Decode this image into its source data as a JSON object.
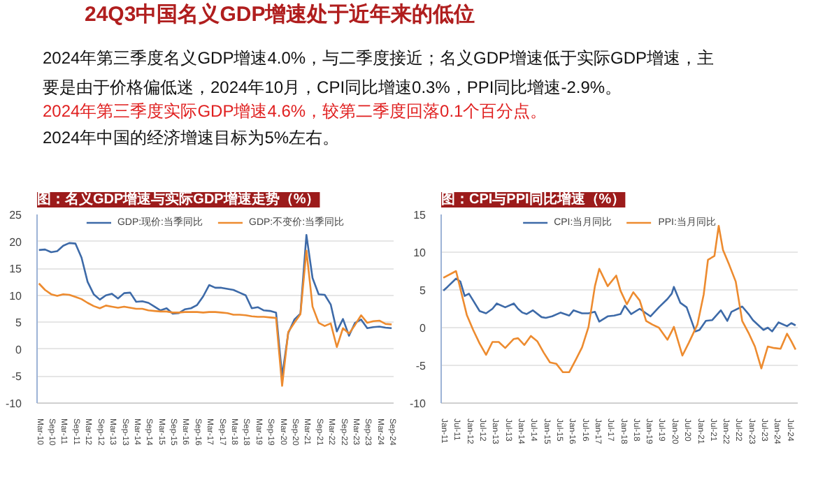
{
  "chart_data": [
    {
      "type": "other",
      "title": "24Q3中国名义GDP增速处于近年来的低位",
      "annotations": [
        "2024年第三季度名义GDP增速4.0%，与二季度接近；名义GDP增速低于实际GDP增速，主要是由于价格偏低迷，2024年10月，CPI同比增速0.3%，PPI同比增速-2.9%。",
        "2024年第三季度实际GDP增速4.6%，较第二季度回落0.1个百分点。",
        "2024年中国的经济增速目标为5%左右。"
      ]
    },
    {
      "type": "line",
      "title": "图：名义GDP增速与实际GDP增速走势（%）",
      "legend": "top",
      "grid": "y",
      "x": [
        "2010-03",
        "2010-06",
        "2010-09",
        "2010-12",
        "2011-03",
        "2011-06",
        "2011-09",
        "2011-12",
        "2012-03",
        "2012-06",
        "2012-09",
        "2012-12",
        "2013-03",
        "2013-06",
        "2013-09",
        "2013-12",
        "2014-03",
        "2014-06",
        "2014-09",
        "2014-12",
        "2015-03",
        "2015-06",
        "2015-09",
        "2015-12",
        "2016-03",
        "2016-06",
        "2016-09",
        "2016-12",
        "2017-03",
        "2017-06",
        "2017-09",
        "2017-12",
        "2018-03",
        "2018-06",
        "2018-09",
        "2018-12",
        "2019-03",
        "2019-06",
        "2019-09",
        "2019-12",
        "2020-03",
        "2020-06",
        "2020-09",
        "2020-12",
        "2021-03",
        "2021-06",
        "2021-09",
        "2021-12",
        "2022-03",
        "2022-06",
        "2022-09",
        "2022-12",
        "2023-03",
        "2023-06",
        "2023-09",
        "2023-12",
        "2024-03",
        "2024-06",
        "2024-09"
      ],
      "series": [
        {
          "name": "GDP:现价:当季同比",
          "color": "#3d6aa8",
          "values": [
            18.4,
            18.5,
            18.0,
            18.2,
            19.2,
            19.7,
            19.6,
            17.0,
            12.5,
            10.2,
            9.2,
            10.0,
            10.3,
            9.4,
            10.4,
            10.5,
            8.8,
            8.9,
            8.6,
            7.9,
            7.2,
            7.6,
            6.6,
            6.7,
            7.4,
            7.6,
            8.2,
            9.8,
            11.9,
            11.4,
            11.4,
            11.2,
            11.0,
            10.5,
            10.0,
            7.6,
            7.8,
            7.2,
            7.1,
            6.8,
            -5.0,
            3.0,
            5.5,
            6.6,
            21.2,
            13.2,
            10.2,
            10.1,
            8.3,
            3.3,
            5.6,
            2.5,
            4.9,
            5.5,
            3.9,
            4.1,
            4.2,
            4.0,
            3.9
          ]
        },
        {
          "name": "GDP:不变价:当季同比",
          "color": "#ed8b2f",
          "values": [
            12.2,
            11.0,
            10.2,
            9.9,
            10.2,
            10.1,
            9.7,
            9.3,
            8.6,
            8.0,
            7.6,
            8.1,
            7.9,
            7.7,
            7.9,
            7.7,
            7.5,
            7.5,
            7.2,
            7.1,
            7.0,
            7.0,
            6.8,
            6.8,
            6.9,
            6.9,
            6.9,
            6.8,
            6.9,
            6.9,
            6.8,
            6.7,
            6.4,
            6.4,
            6.3,
            6.1,
            6.0,
            6.0,
            5.9,
            5.8,
            -6.8,
            3.2,
            4.9,
            6.5,
            18.3,
            7.9,
            4.9,
            4.3,
            4.8,
            0.4,
            3.9,
            2.9,
            4.5,
            6.3,
            4.9,
            5.2,
            5.3,
            4.7,
            4.6
          ]
        }
      ],
      "xlim": [
        "2010-02",
        "2024-10"
      ],
      "xticks": [
        {
          "value": "2010-03",
          "label": "Mar-10"
        },
        {
          "value": "2010-09",
          "label": "Sep-10"
        },
        {
          "value": "2011-03",
          "label": "Mar-11"
        },
        {
          "value": "2011-09",
          "label": "Sep-11"
        },
        {
          "value": "2012-03",
          "label": "Mar-12"
        },
        {
          "value": "2012-09",
          "label": "Sep-12"
        },
        {
          "value": "2013-03",
          "label": "Mar-13"
        },
        {
          "value": "2013-09",
          "label": "Sep-13"
        },
        {
          "value": "2014-03",
          "label": "Mar-14"
        },
        {
          "value": "2014-09",
          "label": "Sep-14"
        },
        {
          "value": "2015-03",
          "label": "Mar-15"
        },
        {
          "value": "2015-09",
          "label": "Sep-15"
        },
        {
          "value": "2016-03",
          "label": "Mar-16"
        },
        {
          "value": "2016-09",
          "label": "Sep-16"
        },
        {
          "value": "2017-03",
          "label": "Mar-17"
        },
        {
          "value": "2017-09",
          "label": "Sep-17"
        },
        {
          "value": "2018-03",
          "label": "Mar-18"
        },
        {
          "value": "2018-09",
          "label": "Sep-18"
        },
        {
          "value": "2019-03",
          "label": "Mar-19"
        },
        {
          "value": "2019-09",
          "label": "Sep-19"
        },
        {
          "value": "2020-03",
          "label": "Mar-20"
        },
        {
          "value": "2020-09",
          "label": "Sep-20"
        },
        {
          "value": "2021-03",
          "label": "Mar-21"
        },
        {
          "value": "2021-09",
          "label": "Sep-21"
        },
        {
          "value": "2022-03",
          "label": "Mar-22"
        },
        {
          "value": "2022-09",
          "label": "Sep-22"
        },
        {
          "value": "2023-03",
          "label": "Mar-23"
        },
        {
          "value": "2023-09",
          "label": "Sep-23"
        },
        {
          "value": "2024-03",
          "label": "Mar-24"
        },
        {
          "value": "2024-09",
          "label": "Sep-24"
        }
      ],
      "ylim": [
        -10,
        25
      ],
      "yticks": [
        -10,
        -5,
        0,
        5,
        10,
        15,
        20,
        25
      ]
    },
    {
      "type": "line",
      "title": "图：CPI与PPI同比增速（%）",
      "legend": "top",
      "grid": "y",
      "series": [
        {
          "name": "CPI:当月同比",
          "color": "#3d6aa8",
          "x": [
            "2011-01",
            "2011-03",
            "2011-07",
            "2011-09",
            "2011-11",
            "2012-01",
            "2012-03",
            "2012-06",
            "2012-09",
            "2012-12",
            "2013-02",
            "2013-06",
            "2013-10",
            "2013-12",
            "2014-02",
            "2014-04",
            "2014-07",
            "2014-11",
            "2015-01",
            "2015-04",
            "2015-08",
            "2015-12",
            "2016-02",
            "2016-06",
            "2016-09",
            "2016-12",
            "2017-02",
            "2017-06",
            "2017-09",
            "2017-12",
            "2018-02",
            "2018-05",
            "2018-09",
            "2018-12",
            "2019-02",
            "2019-06",
            "2019-10",
            "2019-12",
            "2020-01",
            "2020-04",
            "2020-07",
            "2020-11",
            "2021-01",
            "2021-04",
            "2021-07",
            "2021-11",
            "2022-02",
            "2022-04",
            "2022-09",
            "2022-12",
            "2023-02",
            "2023-07",
            "2023-09",
            "2023-11",
            "2024-02",
            "2024-06",
            "2024-08",
            "2024-10"
          ],
          "values": [
            4.9,
            5.4,
            6.5,
            6.1,
            4.2,
            4.5,
            3.6,
            2.2,
            1.9,
            2.5,
            3.2,
            2.7,
            3.2,
            2.5,
            2.0,
            1.8,
            2.3,
            1.4,
            1.3,
            1.5,
            2.0,
            1.6,
            2.3,
            1.9,
            1.9,
            2.1,
            0.8,
            1.5,
            1.6,
            1.8,
            2.9,
            1.8,
            2.5,
            1.9,
            1.5,
            2.7,
            3.8,
            4.5,
            5.4,
            3.3,
            2.7,
            -0.5,
            -0.3,
            0.9,
            1.0,
            2.3,
            0.9,
            2.1,
            2.8,
            1.8,
            1.0,
            -0.3,
            0.0,
            -0.5,
            0.7,
            0.2,
            0.6,
            0.3
          ]
        },
        {
          "name": "PPI:当月同比",
          "color": "#ed8b2f",
          "x": [
            "2011-01",
            "2011-07",
            "2011-12",
            "2012-03",
            "2012-06",
            "2012-09",
            "2012-12",
            "2013-03",
            "2013-06",
            "2013-10",
            "2013-12",
            "2014-03",
            "2014-06",
            "2014-09",
            "2014-12",
            "2015-03",
            "2015-06",
            "2015-09",
            "2015-12",
            "2016-03",
            "2016-06",
            "2016-09",
            "2016-12",
            "2017-02",
            "2017-06",
            "2017-10",
            "2017-12",
            "2018-03",
            "2018-06",
            "2018-09",
            "2018-12",
            "2019-03",
            "2019-06",
            "2019-10",
            "2019-12",
            "2020-01",
            "2020-05",
            "2020-08",
            "2020-12",
            "2021-03",
            "2021-05",
            "2021-08",
            "2021-10",
            "2021-12",
            "2022-03",
            "2022-06",
            "2022-09",
            "2022-12",
            "2023-03",
            "2023-06",
            "2023-09",
            "2023-12",
            "2024-03",
            "2024-06",
            "2024-08",
            "2024-10"
          ],
          "values": [
            6.6,
            7.5,
            1.7,
            -0.3,
            -2.1,
            -3.6,
            -1.9,
            -1.9,
            -2.7,
            -1.5,
            -1.4,
            -2.3,
            -1.1,
            -1.8,
            -3.3,
            -4.6,
            -4.8,
            -5.9,
            -5.9,
            -4.3,
            -2.6,
            0.1,
            5.5,
            7.8,
            5.5,
            6.9,
            4.9,
            3.1,
            4.7,
            3.6,
            0.9,
            0.4,
            0.0,
            -1.6,
            -0.5,
            0.1,
            -3.7,
            -2.0,
            0.4,
            4.4,
            9.0,
            9.5,
            13.5,
            10.3,
            8.3,
            6.1,
            0.9,
            -0.7,
            -2.5,
            -5.4,
            -2.5,
            -2.7,
            -2.8,
            -0.8,
            -1.8,
            -2.9
          ]
        }
      ],
      "xlim": [
        "2010-12",
        "2024-11"
      ],
      "xticks": [
        {
          "value": "2011-01",
          "label": "Jan-11"
        },
        {
          "value": "2011-07",
          "label": "Jul-11"
        },
        {
          "value": "2012-01",
          "label": "Jan-12"
        },
        {
          "value": "2012-07",
          "label": "Jul-12"
        },
        {
          "value": "2013-01",
          "label": "Jan-13"
        },
        {
          "value": "2013-07",
          "label": "Jul-13"
        },
        {
          "value": "2014-01",
          "label": "Jan-14"
        },
        {
          "value": "2014-07",
          "label": "Jul-14"
        },
        {
          "value": "2015-01",
          "label": "Jan-15"
        },
        {
          "value": "2015-07",
          "label": "Jul-15"
        },
        {
          "value": "2016-01",
          "label": "Jan-16"
        },
        {
          "value": "2016-07",
          "label": "Jul-16"
        },
        {
          "value": "2017-01",
          "label": "Jan-17"
        },
        {
          "value": "2017-07",
          "label": "Jul-17"
        },
        {
          "value": "2018-01",
          "label": "Jan-18"
        },
        {
          "value": "2018-07",
          "label": "Jul-18"
        },
        {
          "value": "2019-01",
          "label": "Jan-19"
        },
        {
          "value": "2019-07",
          "label": "Jul-19"
        },
        {
          "value": "2020-01",
          "label": "Jan-20"
        },
        {
          "value": "2020-07",
          "label": "Jul-20"
        },
        {
          "value": "2021-01",
          "label": "Jan-21"
        },
        {
          "value": "2021-07",
          "label": "Jul-21"
        },
        {
          "value": "2022-01",
          "label": "Jan-22"
        },
        {
          "value": "2022-07",
          "label": "Jul-22"
        },
        {
          "value": "2023-01",
          "label": "Jan-23"
        },
        {
          "value": "2023-07",
          "label": "Jul-23"
        },
        {
          "value": "2024-01",
          "label": "Jan-24"
        },
        {
          "value": "2024-07",
          "label": "Jul-24"
        }
      ],
      "ylim": [
        -10,
        15
      ],
      "yticks": [
        -10,
        -5,
        0,
        5,
        10,
        15
      ]
    }
  ]
}
